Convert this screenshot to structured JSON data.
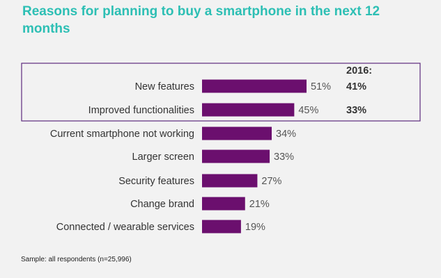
{
  "chart_data": {
    "type": "bar",
    "orientation": "horizontal",
    "title": "Reasons for planning to buy a smartphone in the next 12 months",
    "categories": [
      "New features",
      "Improved functionalities",
      "Current smartphone not working",
      "Larger screen",
      "Security features",
      "Change brand",
      "Connected / wearable services"
    ],
    "values": [
      51,
      45,
      34,
      33,
      27,
      21,
      19
    ],
    "value_labels": [
      "51%",
      "45%",
      "34%",
      "33%",
      "27%",
      "21%",
      "19%"
    ],
    "unit": "%",
    "xlim": [
      0,
      51
    ],
    "bar_color": "#6b0f6e",
    "comparison": {
      "header": "2016:",
      "values": [
        41,
        33
      ],
      "labels": [
        "41%",
        "33%"
      ]
    },
    "highlight": {
      "categories": [
        "New features",
        "Improved functionalities"
      ],
      "border_color": "#5c2a7e"
    },
    "grid": false,
    "legend": "none"
  },
  "footnote": "Sample: all respondents (n=25,996)",
  "colors": {
    "title": "#2dbfb4",
    "background": "#f2f2f2",
    "label_text": "#333333",
    "value_text": "#555555"
  }
}
